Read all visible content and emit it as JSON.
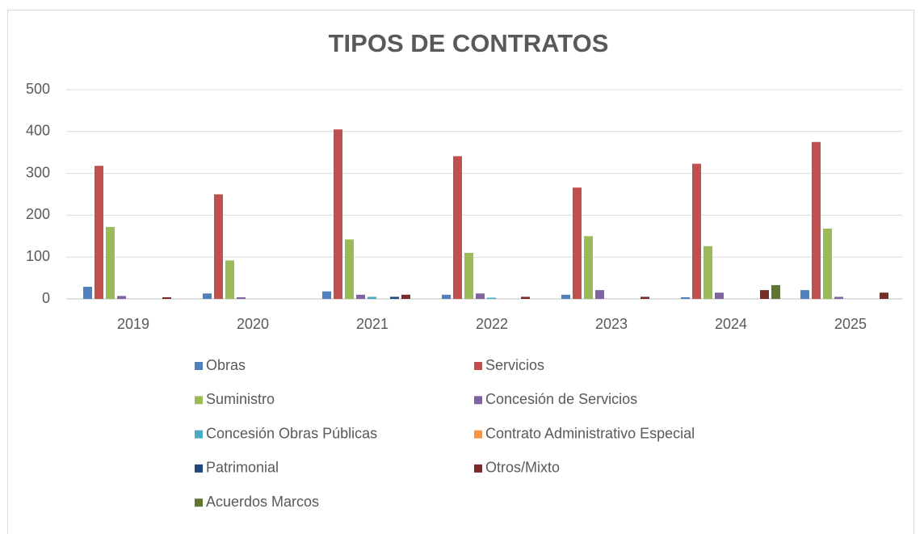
{
  "chart_data": {
    "type": "bar",
    "title": "TIPOS DE CONTRATOS",
    "categories": [
      "2019",
      "2020",
      "2021",
      "2022",
      "2023",
      "2024",
      "2025"
    ],
    "series": [
      {
        "name": "Obras",
        "color": "#4f81bd",
        "values": [
          29,
          13,
          18,
          10,
          10,
          4,
          21
        ]
      },
      {
        "name": "Servicios",
        "color": "#c0504d",
        "values": [
          318,
          250,
          405,
          341,
          266,
          323,
          375
        ]
      },
      {
        "name": "Suministro",
        "color": "#9bbb59",
        "values": [
          172,
          92,
          142,
          110,
          150,
          126,
          168
        ]
      },
      {
        "name": "Concesión de Servicios",
        "color": "#8064a2",
        "values": [
          7,
          4,
          10,
          13,
          21,
          15,
          5
        ]
      },
      {
        "name": "Concesión Obras Públicas",
        "color": "#4bacc6",
        "values": [
          0,
          0,
          5,
          3,
          0,
          0,
          0
        ]
      },
      {
        "name": "Contrato Administrativo Especial",
        "color": "#f79646",
        "values": [
          0,
          0,
          0,
          0,
          0,
          0,
          0
        ]
      },
      {
        "name": "Patrimonial",
        "color": "#1f497d",
        "values": [
          0,
          0,
          5,
          0,
          0,
          0,
          0
        ]
      },
      {
        "name": "Otros/Mixto",
        "color": "#772c2a",
        "values": [
          4,
          0,
          10,
          5,
          5,
          21,
          15
        ]
      },
      {
        "name": "Acuerdos Marcos",
        "color": "#5f7530",
        "values": [
          0,
          0,
          0,
          0,
          0,
          33,
          0
        ]
      }
    ],
    "ylim": [
      0,
      500
    ],
    "yticks": [
      0,
      100,
      200,
      300,
      400,
      500
    ],
    "grid": true,
    "legend": "bottom"
  }
}
